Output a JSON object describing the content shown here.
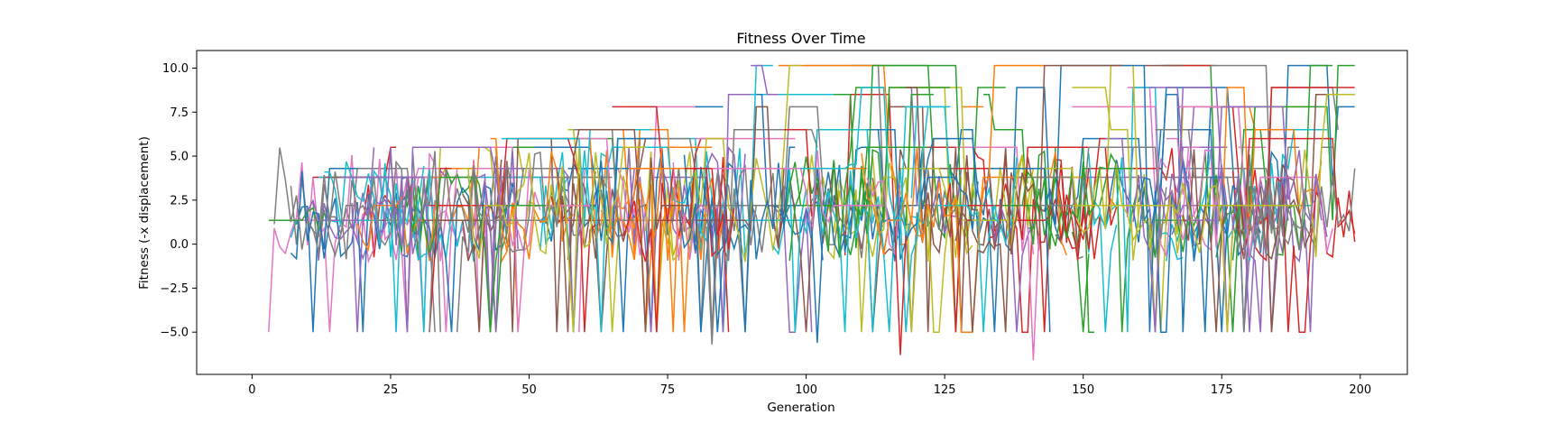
{
  "chart_data": {
    "type": "line",
    "title": "Fitness Over Time",
    "xlabel": "Generation",
    "ylabel": "Fitness (-x displacement)",
    "xlim": [
      -10,
      208.5
    ],
    "ylim": [
      -7.4,
      11.0
    ],
    "xticks": [
      0,
      25,
      50,
      75,
      100,
      125,
      150,
      175,
      200
    ],
    "xtick_labels": [
      "0",
      "25",
      "50",
      "75",
      "100",
      "125",
      "150",
      "175",
      "200"
    ],
    "yticks": [
      -5.0,
      -2.5,
      0.0,
      2.5,
      5.0,
      7.5,
      10.0
    ],
    "ytick_labels": [
      "−5.0",
      "−2.5",
      "0.0",
      "2.5",
      "5.0",
      "7.5",
      "10.0"
    ],
    "grid": false,
    "legend": "none",
    "n_series": 200,
    "generations": [
      0,
      199
    ],
    "series_colors": [
      "#1f77b4",
      "#ff7f0e",
      "#2ca02c",
      "#d62728",
      "#9467bd",
      "#8c564b",
      "#e377c2",
      "#7f7f7f",
      "#bcbd22",
      "#17becf"
    ],
    "fitness_levels": [
      -5.0,
      1.35,
      2.2,
      3.8,
      4.3,
      5.5,
      6.0,
      6.5,
      7.8,
      8.5,
      8.9,
      10.15
    ],
    "level_first_generation": [
      0,
      0,
      0,
      3,
      6,
      16,
      40,
      57,
      65,
      86,
      100,
      90
    ],
    "outlier_points": [
      {
        "x": 83,
        "y": -5.7
      },
      {
        "x": 102,
        "y": -5.6
      },
      {
        "x": 117,
        "y": -6.3
      },
      {
        "x": 141,
        "y": -6.6
      }
    ]
  }
}
